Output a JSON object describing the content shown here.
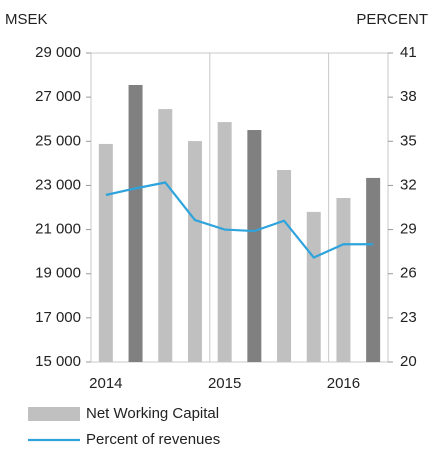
{
  "chart_data": {
    "type": "bar_line",
    "y_axis_label": "MSEK",
    "y2_axis_label": "PERCENT",
    "categories": [
      "2014",
      null,
      null,
      null,
      "2015",
      null,
      null,
      null,
      "2016",
      null
    ],
    "series": [
      {
        "name": "Net Working Capital",
        "type": "bar",
        "color": "#c0c0c0",
        "colors": [
          "#c0c0c0",
          "#808080",
          "#c0c0c0",
          "#c0c0c0",
          "#c0c0c0",
          "#808080",
          "#c0c0c0",
          "#c0c0c0",
          "#c0c0c0",
          "#808080"
        ],
        "values": [
          24880,
          27550,
          26460,
          25010,
          25870,
          25510,
          23700,
          21800,
          22430,
          23340
        ]
      },
      {
        "name": "Percent of revenues",
        "type": "line",
        "axis": "y2",
        "color": "#2ea3dc",
        "values": [
          31.35,
          31.8,
          32.2,
          29.65,
          29.0,
          28.9,
          29.6,
          27.1,
          28.0,
          28.0
        ]
      }
    ],
    "ylim": [
      15000,
      29000
    ],
    "yticks": [
      {
        "value": 15000,
        "label": "15 000"
      },
      {
        "value": 17000,
        "label": "17 000"
      },
      {
        "value": 19000,
        "label": "19 000"
      },
      {
        "value": 21000,
        "label": "21 000"
      },
      {
        "value": 23000,
        "label": "23 000"
      },
      {
        "value": 25000,
        "label": "25 000"
      },
      {
        "value": 27000,
        "label": "27 000"
      },
      {
        "value": 29000,
        "label": "29 000"
      }
    ],
    "y2lim": [
      20,
      41
    ],
    "y2ticks": [
      20,
      23,
      26,
      29,
      32,
      35,
      38,
      41
    ]
  }
}
